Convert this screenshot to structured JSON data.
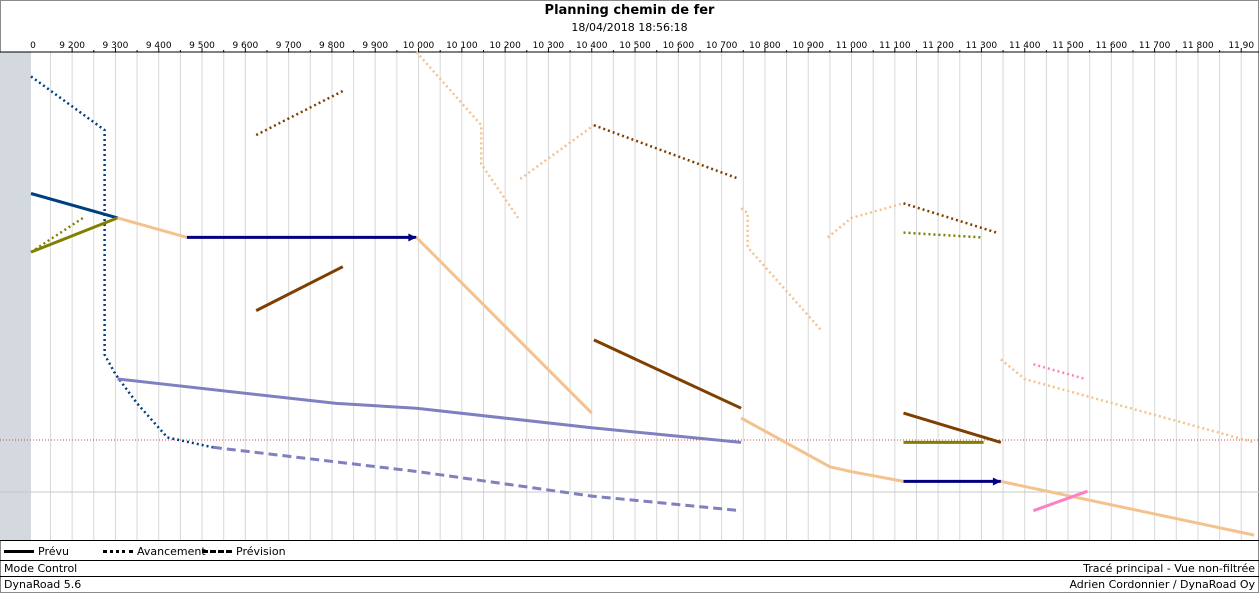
{
  "header": {
    "title": "Planning chemin de fer",
    "subtitle": "18/04/2018 18:56:18"
  },
  "legend": {
    "items": [
      {
        "label": "Prévu",
        "style": "solid"
      },
      {
        "label": "Avancement",
        "style": "dotted"
      },
      {
        "label": "Prévision",
        "style": "dashed"
      }
    ]
  },
  "status": {
    "mode": "Mode Control",
    "view": "Tracé principal - Vue non-filtrée",
    "version": "DynaRoad 5.6",
    "author": "Adrien Cordonnier / DynaRoad Oy"
  },
  "chart_data": {
    "type": "line",
    "title": "Planning chemin de fer",
    "subtitle": "18/04/2018 18:56:18",
    "x_axis": {
      "first_tick_label": "0",
      "tick_labels": [
        "9 200",
        "9 300",
        "9 400",
        "9 500",
        "9 600",
        "9 700",
        "9 800",
        "9 900",
        "10 000",
        "10 100",
        "10 200",
        "10 300",
        "10 400",
        "10 500",
        "10 600",
        "10 700",
        "10 800",
        "10 900",
        "11 000",
        "11 100",
        "11 200",
        "11 300",
        "11 400",
        "11 500",
        "11 600",
        "11 700",
        "11 800",
        "11 90"
      ],
      "xlim": [
        9105,
        11930
      ]
    },
    "grid": true,
    "series": [
      {
        "color": "#003f7f",
        "style": "dotted",
        "points": [
          [
            9105,
            0.05
          ],
          [
            9275,
            0.16
          ],
          [
            9275,
            0.62
          ],
          [
            9300,
            0.66
          ],
          [
            9350,
            0.72
          ],
          [
            9420,
            0.79
          ],
          [
            9525,
            0.81
          ]
        ]
      },
      {
        "color": "#003f7f",
        "style": "solid",
        "points": [
          [
            9105,
            0.29
          ],
          [
            9305,
            0.34
          ]
        ]
      },
      {
        "color": "#808000",
        "style": "dotted",
        "points": [
          [
            9105,
            0.41
          ],
          [
            9225,
            0.34
          ]
        ]
      },
      {
        "color": "#808000",
        "style": "solid",
        "points": [
          [
            9105,
            0.41
          ],
          [
            9305,
            0.34
          ]
        ]
      },
      {
        "color": "#f4c28e",
        "style": "solid",
        "points": [
          [
            9305,
            0.34
          ],
          [
            9465,
            0.38
          ]
        ]
      },
      {
        "color": "#000080",
        "style": "solid",
        "arrow": true,
        "points": [
          [
            9465,
            0.38
          ],
          [
            9995,
            0.38
          ]
        ]
      },
      {
        "color": "#f4c28e",
        "style": "solid",
        "points": [
          [
            9995,
            0.38
          ],
          [
            10400,
            0.74
          ]
        ]
      },
      {
        "color": "#7f3f00",
        "style": "dotted",
        "points": [
          [
            9625,
            0.17
          ],
          [
            9825,
            0.08
          ]
        ]
      },
      {
        "color": "#7f3f00",
        "style": "solid",
        "points": [
          [
            9625,
            0.53
          ],
          [
            9825,
            0.44
          ]
        ]
      },
      {
        "color": "#f4c28e",
        "style": "dotted",
        "points": [
          [
            9995,
            0.0
          ],
          [
            10145,
            0.15
          ],
          [
            10145,
            0.23
          ],
          [
            10230,
            0.34
          ]
        ]
      },
      {
        "color": "#f4c28e",
        "style": "dotted",
        "points": [
          [
            10235,
            0.26
          ],
          [
            10405,
            0.15
          ]
        ]
      },
      {
        "color": "#7f3f00",
        "style": "dotted",
        "points": [
          [
            10405,
            0.15
          ],
          [
            10740,
            0.26
          ]
        ]
      },
      {
        "color": "#8080c0",
        "style": "solid",
        "points": [
          [
            9305,
            0.67
          ],
          [
            9810,
            0.72
          ],
          [
            9995,
            0.73
          ],
          [
            10400,
            0.77
          ],
          [
            10745,
            0.8
          ]
        ]
      },
      {
        "color": "#8080c0",
        "style": "dashed",
        "points": [
          [
            9525,
            0.81
          ],
          [
            10000,
            0.86
          ],
          [
            10400,
            0.91
          ],
          [
            10745,
            0.94
          ]
        ]
      },
      {
        "color": "#7f3f00",
        "style": "solid",
        "points": [
          [
            10405,
            0.59
          ],
          [
            10745,
            0.73
          ]
        ]
      },
      {
        "color": "#f4c28e",
        "style": "dotted",
        "points": [
          [
            10745,
            0.32
          ],
          [
            10760,
            0.33
          ],
          [
            10760,
            0.4
          ],
          [
            10930,
            0.57
          ]
        ]
      },
      {
        "color": "#f4c28e",
        "style": "solid",
        "points": [
          [
            10745,
            0.75
          ],
          [
            10950,
            0.85
          ],
          [
            11000,
            0.86
          ],
          [
            11120,
            0.88
          ]
        ]
      },
      {
        "color": "#f4c28e",
        "style": "dotted",
        "points": [
          [
            10945,
            0.38
          ],
          [
            11000,
            0.34
          ],
          [
            11120,
            0.31
          ]
        ]
      },
      {
        "color": "#7f3f00",
        "style": "dotted",
        "points": [
          [
            11120,
            0.31
          ],
          [
            11335,
            0.37
          ]
        ]
      },
      {
        "color": "#808000",
        "style": "dotted",
        "points": [
          [
            11120,
            0.37
          ],
          [
            11300,
            0.38
          ]
        ]
      },
      {
        "color": "#7f3f00",
        "style": "solid",
        "points": [
          [
            11120,
            0.74
          ],
          [
            11345,
            0.8
          ]
        ]
      },
      {
        "color": "#808000",
        "style": "solid",
        "points": [
          [
            11120,
            0.8
          ],
          [
            11305,
            0.8
          ]
        ]
      },
      {
        "color": "#000080",
        "style": "solid",
        "arrow": true,
        "points": [
          [
            11120,
            0.88
          ],
          [
            11345,
            0.88
          ]
        ]
      },
      {
        "color": "#f4c28e",
        "style": "solid",
        "points": [
          [
            11345,
            0.88
          ],
          [
            11930,
            0.99
          ]
        ]
      },
      {
        "color": "#f4c28e",
        "style": "dotted",
        "points": [
          [
            11345,
            0.63
          ],
          [
            11400,
            0.67
          ],
          [
            11930,
            0.8
          ]
        ]
      },
      {
        "color": "#ff80c0",
        "style": "dotted",
        "points": [
          [
            11420,
            0.64
          ],
          [
            11540,
            0.67
          ]
        ]
      },
      {
        "color": "#ff80c0",
        "style": "solid",
        "points": [
          [
            11420,
            0.94
          ],
          [
            11545,
            0.9
          ]
        ]
      }
    ]
  }
}
